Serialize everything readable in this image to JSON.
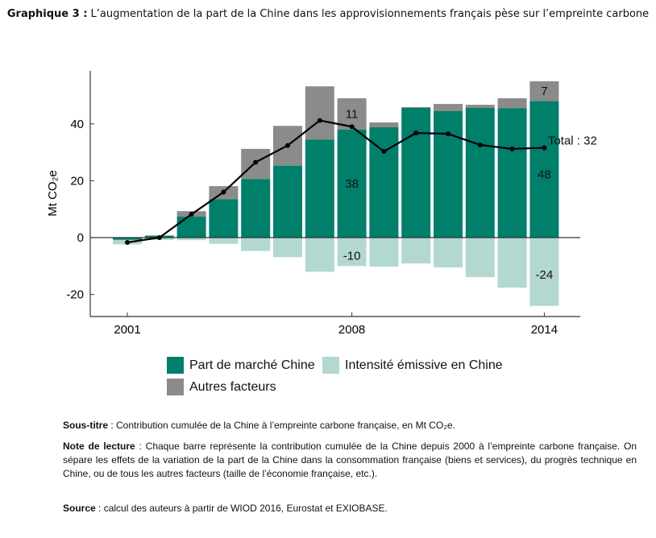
{
  "title": {
    "label": "Graphique 3 :",
    "text": "L’augmentation de la part de la Chine dans les approvisionnements français pèse sur l’empreinte carbone"
  },
  "chart_data": {
    "type": "bar",
    "stacked": true,
    "ylabel": "Mt CO₂e",
    "ylim": [
      -26,
      57
    ],
    "yticks": [
      -20,
      0,
      20,
      40
    ],
    "xticks": [
      "2001",
      "2008",
      "2014"
    ],
    "grid": false,
    "legend_position": "bottom",
    "categories": [
      "2001",
      "2002",
      "2003",
      "2004",
      "2005",
      "2006",
      "2007",
      "2008",
      "2009",
      "2010",
      "2011",
      "2012",
      "2013",
      "2014"
    ],
    "series": [
      {
        "name": "Part de marché Chine",
        "color": "#007f6b",
        "values": [
          -0.8,
          0.7,
          7.4,
          13.5,
          20.6,
          25.3,
          34.5,
          38,
          38.8,
          45.6,
          44.5,
          45.6,
          45.5,
          48
        ]
      },
      {
        "name": "Autres facteurs",
        "color": "#8a8b8a",
        "values": [
          0,
          0,
          1.9,
          4.6,
          10.6,
          14,
          18.7,
          11,
          1.7,
          0.3,
          2.5,
          1.1,
          3.5,
          7
        ]
      },
      {
        "name": "Intensité émissive en Chine",
        "color": "#b3d7d1",
        "values": [
          -1.6,
          -0.8,
          -0.9,
          -2.2,
          -4.7,
          -6.9,
          -12,
          -10,
          -10.2,
          -9.1,
          -10.5,
          -13.9,
          -17.6,
          -24
        ]
      }
    ],
    "total": {
      "values": [
        -1.7,
        0,
        8.2,
        16,
        26.5,
        32.4,
        41.2,
        39,
        30.3,
        36.8,
        36.5,
        32.6,
        31.2,
        31.6
      ],
      "color": "#000000"
    },
    "annotations": [
      {
        "category": "2008",
        "series": "Autres facteurs",
        "text": "11"
      },
      {
        "category": "2008",
        "series": "Part de marché Chine",
        "text": "38"
      },
      {
        "category": "2008",
        "series": "Intensité émissive en Chine",
        "text": "-10"
      },
      {
        "category": "2014",
        "series": "Autres facteurs",
        "text": "7"
      },
      {
        "category": "2014",
        "series": "Part de marché Chine",
        "text": "48"
      },
      {
        "category": "2014",
        "series": "Intensité émissive en Chine",
        "text": "-24"
      },
      {
        "category": "2014",
        "series": "Total",
        "text": "Total : 32"
      }
    ]
  },
  "legend": [
    "Part de marché Chine",
    "Intensité émissive en Chine",
    "Autres facteurs"
  ],
  "notes": {
    "subtitle_label": "Sous-titre",
    "subtitle": " : Contribution cumulée de la Chine à l’empreinte carbone française, en Mt CO₂e.",
    "reading_label": "Note de lecture",
    "reading": " : Chaque barre représente la contribution cumulée de la Chine depuis 2000 à l’empreinte carbone française. On sépare les effets de la variation de la part de la Chine dans la consommation française (biens et services), du progrès technique en Chine, ou de tous les autres facteurs (taille de l’économie française, etc.).",
    "source_label": "Source",
    "source": " : calcul des auteurs à partir de WIOD 2016, Eurostat et EXIOBASE."
  }
}
